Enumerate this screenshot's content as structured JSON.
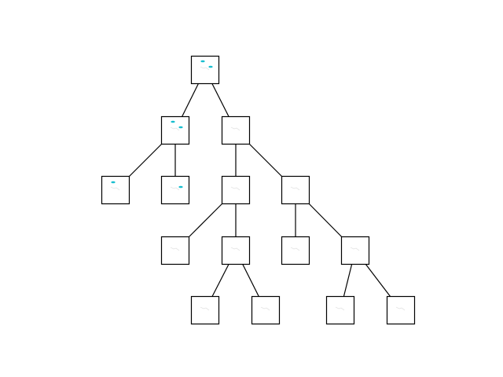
{
  "diagram": {
    "type": "tree",
    "colors": {
      "background": "#ffffff",
      "node_border": "#000000",
      "edge": "#000000",
      "marker": "#17becf",
      "faint_mark": "#cccccc"
    },
    "root": "n0",
    "nodes": [
      {
        "id": "n0",
        "parent": null,
        "depth": 0,
        "markers": 2
      },
      {
        "id": "n1",
        "parent": "n0",
        "depth": 1,
        "markers": 2
      },
      {
        "id": "n2",
        "parent": "n0",
        "depth": 1,
        "markers": 0
      },
      {
        "id": "n3",
        "parent": "n1",
        "depth": 2,
        "markers": 1
      },
      {
        "id": "n4",
        "parent": "n1",
        "depth": 2,
        "markers": 1
      },
      {
        "id": "n5",
        "parent": "n2",
        "depth": 2,
        "markers": 0
      },
      {
        "id": "n6",
        "parent": "n2",
        "depth": 2,
        "markers": 0
      },
      {
        "id": "n7",
        "parent": "n5",
        "depth": 3,
        "markers": 0
      },
      {
        "id": "n8",
        "parent": "n5",
        "depth": 3,
        "markers": 0
      },
      {
        "id": "n9",
        "parent": "n6",
        "depth": 3,
        "markers": 0
      },
      {
        "id": "n10",
        "parent": "n6",
        "depth": 3,
        "markers": 0
      },
      {
        "id": "n11",
        "parent": "n8",
        "depth": 4,
        "markers": 0
      },
      {
        "id": "n12",
        "parent": "n8",
        "depth": 4,
        "markers": 0
      },
      {
        "id": "n13",
        "parent": "n10",
        "depth": 4,
        "markers": 0
      },
      {
        "id": "n14",
        "parent": "n10",
        "depth": 4,
        "markers": 0
      }
    ]
  }
}
